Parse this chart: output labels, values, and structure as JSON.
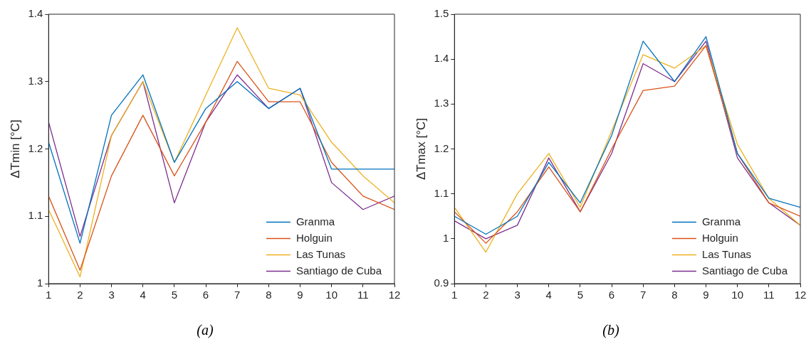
{
  "chart_data": [
    {
      "type": "line",
      "ylabel": "ΔTmin [°C]",
      "annotations": [
        "(a)"
      ],
      "x": [
        1,
        2,
        3,
        4,
        5,
        6,
        7,
        8,
        9,
        10,
        11,
        12
      ],
      "xlim": [
        1,
        12
      ],
      "xticks": [
        1,
        2,
        3,
        4,
        5,
        6,
        7,
        8,
        9,
        10,
        11,
        12
      ],
      "ylim": [
        1,
        1.4
      ],
      "yticks": [
        1,
        1.1,
        1.2,
        1.3,
        1.4
      ],
      "grid": false,
      "legend": "bottom right",
      "marker": "none",
      "line_style": "solid",
      "series": [
        {
          "name": "Granma",
          "color": "#0072bd",
          "values": [
            1.21,
            1.06,
            1.25,
            1.31,
            1.18,
            1.26,
            1.3,
            1.26,
            1.29,
            1.17,
            1.17,
            1.17
          ]
        },
        {
          "name": "Holguin",
          "color": "#d95319",
          "values": [
            1.13,
            1.02,
            1.16,
            1.25,
            1.16,
            1.24,
            1.33,
            1.27,
            1.27,
            1.18,
            1.13,
            1.11
          ]
        },
        {
          "name": "Las Tunas",
          "color": "#edb120",
          "values": [
            1.11,
            1.01,
            1.22,
            1.3,
            1.18,
            1.28,
            1.38,
            1.29,
            1.28,
            1.21,
            1.16,
            1.12
          ]
        },
        {
          "name": "Santiago de Cuba",
          "color": "#7e2f8e",
          "values": [
            1.24,
            1.07,
            1.22,
            1.3,
            1.12,
            1.24,
            1.31,
            1.26,
            1.29,
            1.15,
            1.11,
            1.13
          ]
        }
      ]
    },
    {
      "type": "line",
      "ylabel": "ΔTmax [°C]",
      "annotations": [
        "(b)"
      ],
      "x": [
        1,
        2,
        3,
        4,
        5,
        6,
        7,
        8,
        9,
        10,
        11,
        12
      ],
      "xlim": [
        1,
        12
      ],
      "xticks": [
        1,
        2,
        3,
        4,
        5,
        6,
        7,
        8,
        9,
        10,
        11,
        12
      ],
      "ylim": [
        0.9,
        1.5
      ],
      "yticks": [
        0.9,
        1,
        1.1,
        1.2,
        1.3,
        1.4,
        1.5
      ],
      "grid": false,
      "legend": "bottom right",
      "marker": "none",
      "line_style": "solid",
      "series": [
        {
          "name": "Granma",
          "color": "#0072bd",
          "values": [
            1.05,
            1.01,
            1.05,
            1.17,
            1.08,
            1.23,
            1.44,
            1.35,
            1.45,
            1.19,
            1.09,
            1.07
          ]
        },
        {
          "name": "Holguin",
          "color": "#d95319",
          "values": [
            1.06,
            0.99,
            1.06,
            1.16,
            1.06,
            1.2,
            1.33,
            1.34,
            1.43,
            1.19,
            1.08,
            1.05
          ]
        },
        {
          "name": "Las Tunas",
          "color": "#edb120",
          "values": [
            1.07,
            0.97,
            1.1,
            1.19,
            1.07,
            1.24,
            1.41,
            1.38,
            1.43,
            1.21,
            1.09,
            1.03
          ]
        },
        {
          "name": "Santiago de Cuba",
          "color": "#7e2f8e",
          "values": [
            1.04,
            1.0,
            1.03,
            1.18,
            1.06,
            1.19,
            1.39,
            1.35,
            1.44,
            1.18,
            1.08,
            1.03
          ]
        }
      ]
    }
  ]
}
